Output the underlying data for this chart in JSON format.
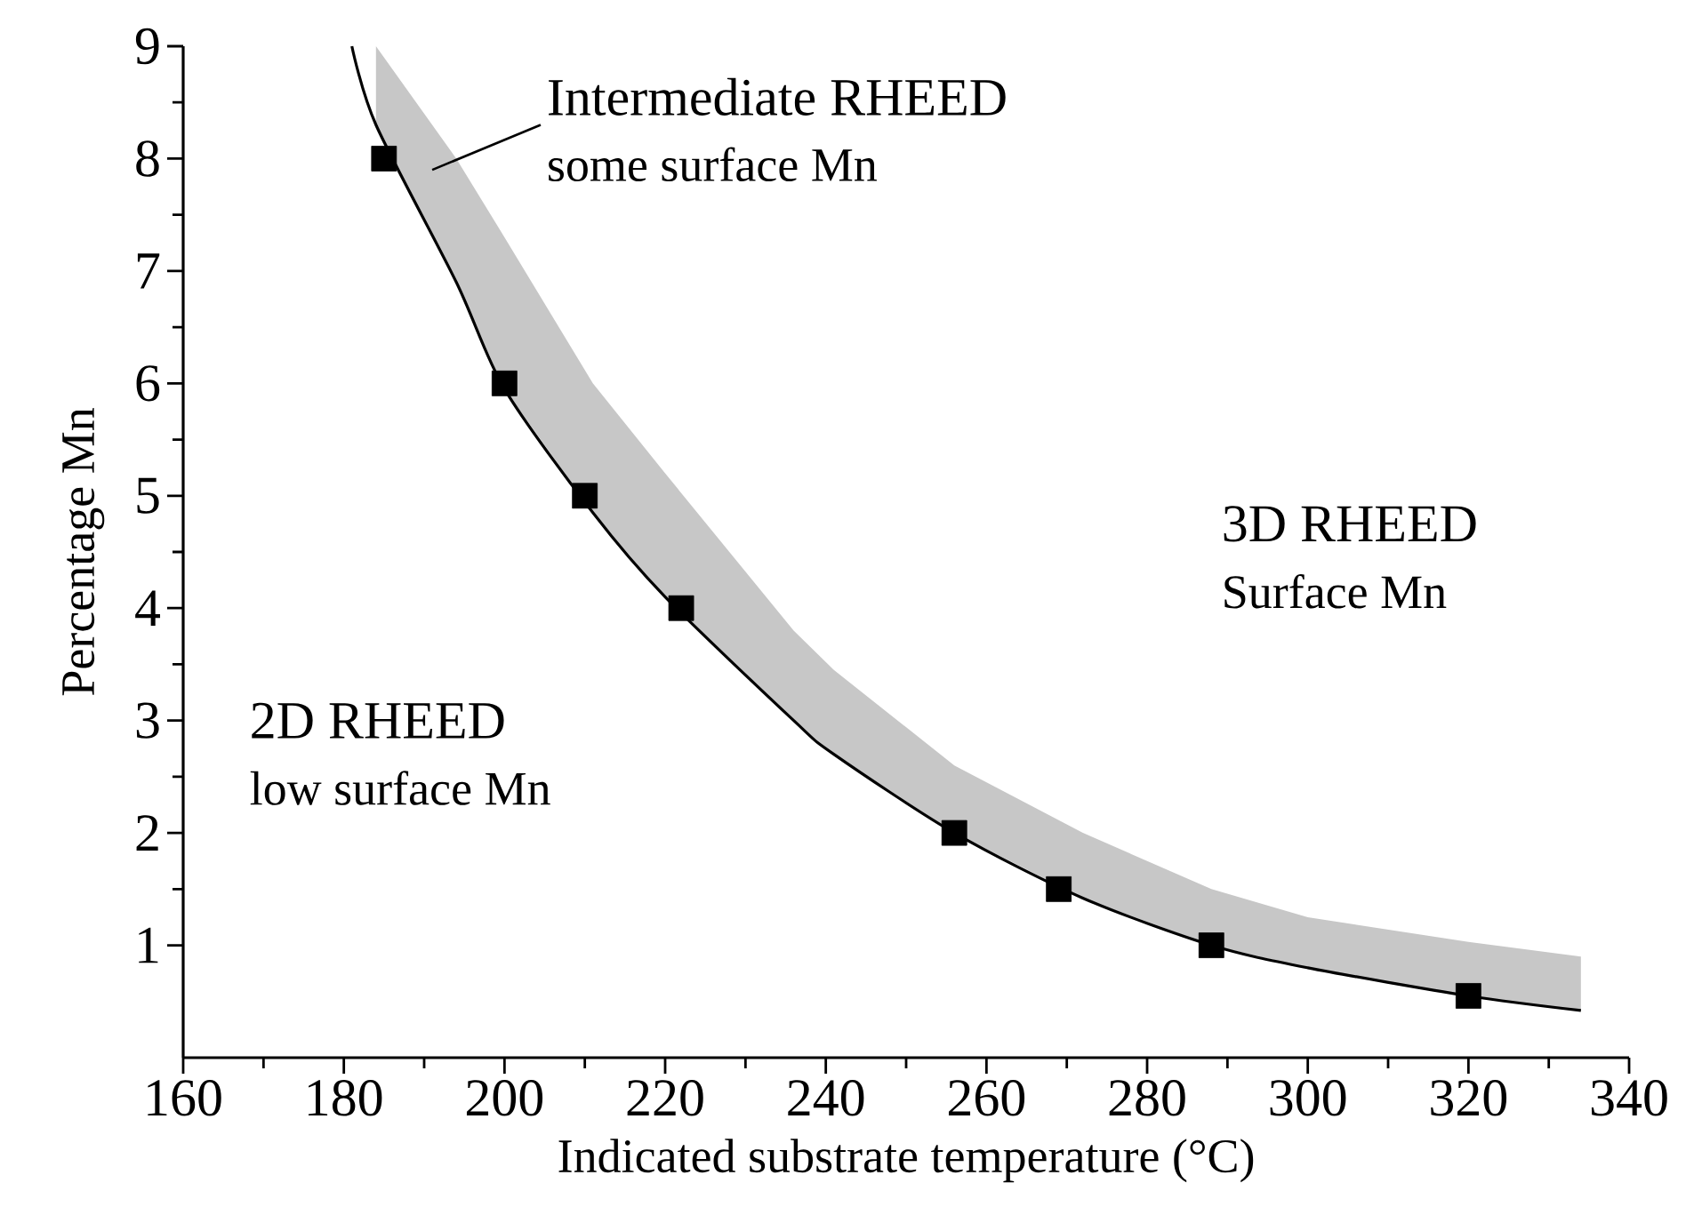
{
  "chart_data": {
    "type": "scatter",
    "xlabel": "Indicated substrate  temperature (°C)",
    "ylabel": "Percentage Mn",
    "xlim": [
      160,
      340
    ],
    "xticks": [
      160,
      180,
      200,
      220,
      240,
      260,
      280,
      300,
      320,
      340
    ],
    "ylim": [
      0,
      9
    ],
    "yticks": [
      1,
      2,
      3,
      4,
      5,
      6,
      7,
      8,
      9
    ],
    "grid": false,
    "series": [
      {
        "type": "line",
        "color": "#000000",
        "x": [
          181,
          184,
          194,
          200,
          211,
          220,
          236,
          241,
          256,
          272,
          288,
          300,
          320,
          334
        ],
        "values": [
          9.0,
          8.3,
          6.9,
          5.95,
          4.85,
          4.1,
          3.0,
          2.7,
          2.0,
          1.42,
          1.0,
          0.8,
          0.55,
          0.42
        ],
        "lower": [
          null,
          8.3,
          6.9,
          5.95,
          4.85,
          4.1,
          3.0,
          2.7,
          2.0,
          1.42,
          1.0,
          0.8,
          0.55,
          0.42
        ],
        "upper": [
          null,
          9.0,
          8.0,
          7.3,
          6.0,
          5.2,
          3.8,
          3.45,
          2.6,
          2.0,
          1.5,
          1.25,
          1.03,
          0.9
        ]
      },
      {
        "color": "#000000",
        "marker": "square",
        "x": [
          185,
          200,
          210,
          222,
          256,
          269,
          288,
          320
        ],
        "values": [
          8,
          6,
          5,
          4,
          2,
          1.5,
          1,
          0.55
        ]
      }
    ],
    "annotations": [
      "Intermediate RHEED",
      "some surface Mn",
      "2D RHEED",
      "low surface Mn",
      "3D RHEED",
      "Surface Mn"
    ]
  }
}
